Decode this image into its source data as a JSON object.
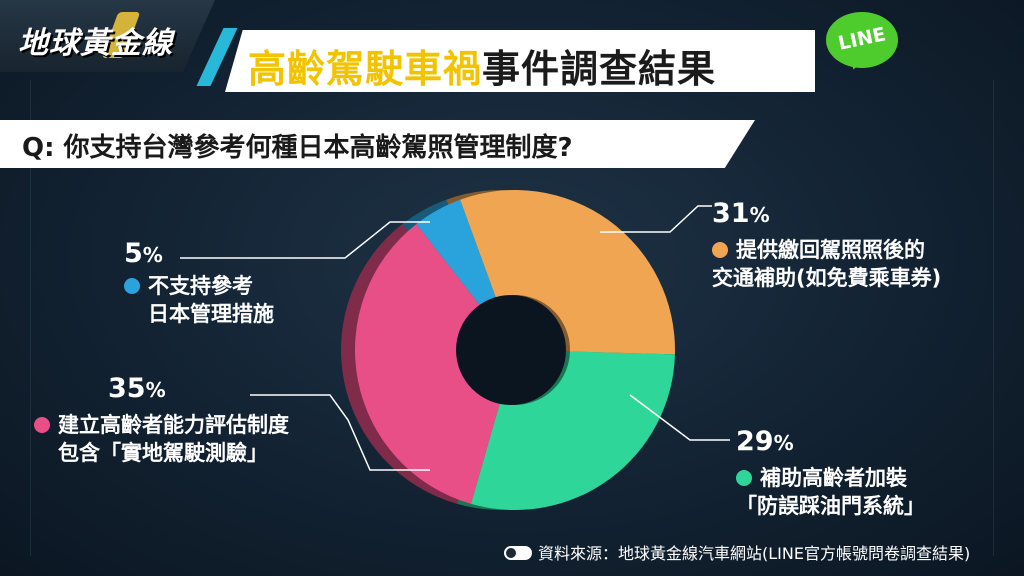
{
  "header": {
    "logo": "地球黃金線",
    "title_highlight": "高齡駕駛車禍",
    "title_rest": "事件調查結果",
    "badge": "LINE"
  },
  "question": "Q: 你支持台灣參考何種日本高齡駕照管理制度?",
  "chart_data": {
    "type": "pie",
    "donut": true,
    "slices": [
      {
        "label": "提供繳回駕照照後的交通補助(如免費乘車券)",
        "value": 31,
        "color": "#f0a552"
      },
      {
        "label": "補助高齡者加裝「防誤踩油門系統」",
        "value": 29,
        "color": "#2ed69a"
      },
      {
        "label": "建立高齡者能力評估制度包含「實地駕駛測驗」",
        "value": 35,
        "color": "#e84f86"
      },
      {
        "label": "不支持參考日本管理措施",
        "value": 5,
        "color": "#2aa3dc"
      }
    ]
  },
  "labels": {
    "s31": {
      "pct": "31",
      "line1": "提供繳回駕照照後的",
      "line2": "交通補助(如免費乘車券)"
    },
    "s29": {
      "pct": "29",
      "line1": "補助高齡者加裝",
      "line2": "「防誤踩油門系統」"
    },
    "s35": {
      "pct": "35",
      "line1": "建立高齡者能力評估制度",
      "line2": "包含「實地駕駛測驗」"
    },
    "s5": {
      "pct": "5",
      "line1": "不支持參考",
      "line2": "日本管理措施"
    },
    "percent_sign": "%"
  },
  "footer": "資料來源：地球黃金線汽車網站(LINE官方帳號問卷調查結果)"
}
